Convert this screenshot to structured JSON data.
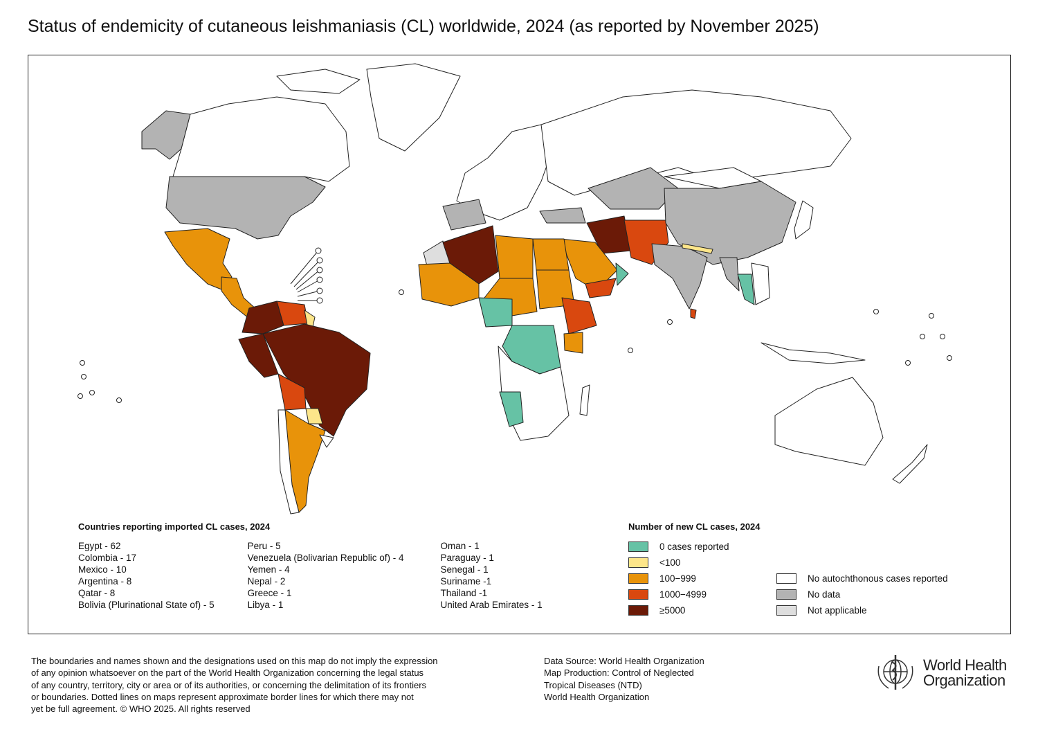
{
  "title": "Status of endemicity of cutaneous leishmaniasis (CL) worldwide, 2024 (as reported by November 2025)",
  "imported": {
    "heading": "Countries reporting imported CL cases, 2024",
    "columns": [
      [
        "Egypt - 62",
        "Colombia - 17",
        "Mexico - 10",
        "Argentina  - 8",
        "Qatar - 8",
        "Bolivia (Plurinational State of) - 5"
      ],
      [
        "Peru - 5",
        "Venezuela (Bolivarian Republic of) - 4",
        "Yemen - 4",
        "Nepal - 2",
        "Greece - 1",
        "Libya - 1"
      ],
      [
        "Oman - 1",
        "Paraguay - 1",
        "Senegal - 1",
        "Suriname -1",
        "Thailand -1",
        "United Arab Emirates - 1"
      ]
    ]
  },
  "legend": {
    "heading": "Number of new CL cases, 2024",
    "items": [
      {
        "label": "0 cases reported",
        "color": "#66c2a5"
      },
      {
        "label": "<100",
        "color": "#fde68a"
      },
      {
        "label": "100−999",
        "color": "#e8930a"
      },
      {
        "label": "1000−4999",
        "color": "#d9480f"
      },
      {
        "label": "≥5000",
        "color": "#6b1a07"
      },
      {
        "label": "No autochthonous cases reported",
        "color": "#ffffff"
      },
      {
        "label": "No data",
        "color": "#b3b3b3"
      },
      {
        "label": "Not applicable",
        "color": "#dedede"
      }
    ]
  },
  "disclaimer": [
    "The boundaries and names shown and the designations used on this map do not imply the expression",
    "of any opinion whatsoever on the part of the World Health Organization concerning the legal status",
    "of any country, territory, city or area or of its authorities, or concerning the delimitation of its frontiers",
    "or boundaries. Dotted lines on maps represent approximate border lines for which there may not",
    "yet be full agreement. © WHO 2025. All rights reserved"
  ],
  "source": [
    "Data Source: World Health Organization",
    "Map Production: Control of Neglected",
    "Tropical Diseases (NTD)",
    "World Health Organization"
  ],
  "logo": {
    "line1": "World Health",
    "line2": "Organization"
  }
}
